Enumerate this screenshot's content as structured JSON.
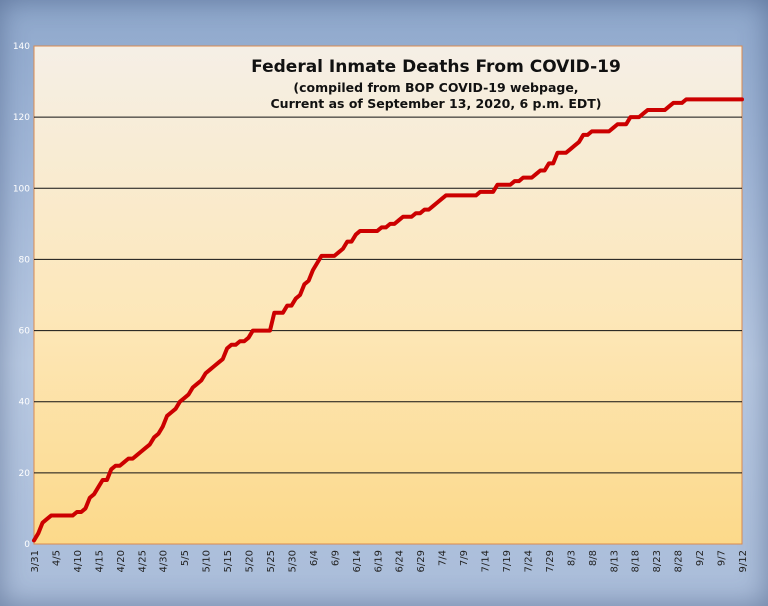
{
  "chart_data": {
    "type": "line",
    "title": "Federal Inmate Deaths From COVID-19",
    "subtitle": [
      "(compiled from BOP COVID-19 webpage,",
      "Current as of September 13, 2020, 6 p.m. EDT)"
    ],
    "xlabel": "",
    "ylabel": "",
    "ylim": [
      0,
      140
    ],
    "yticks": [
      0,
      20,
      40,
      60,
      80,
      100,
      120,
      140
    ],
    "xticks": [
      "3/31",
      "4/5",
      "4/10",
      "4/15",
      "4/20",
      "4/25",
      "4/30",
      "5/5",
      "5/10",
      "5/15",
      "5/20",
      "5/25",
      "5/30",
      "6/4",
      "6/9",
      "6/14",
      "6/19",
      "6/24",
      "6/29",
      "7/4",
      "7/9",
      "7/14",
      "7/19",
      "7/24",
      "7/29",
      "8/3",
      "8/8",
      "8/13",
      "8/18",
      "8/23",
      "8/28",
      "9/2",
      "9/7",
      "9/12"
    ],
    "grid": true,
    "line_color": "#cc0000",
    "series": [
      {
        "x": [
          0,
          1,
          2,
          3,
          4,
          5,
          6,
          7,
          8,
          9,
          10,
          11,
          12,
          13,
          14,
          15,
          16,
          17,
          18,
          19,
          20,
          21,
          22,
          23,
          24,
          25,
          26,
          27,
          28,
          29,
          30,
          31,
          32,
          33,
          34,
          35,
          36,
          37,
          38,
          39,
          40,
          41,
          42,
          43,
          44,
          45,
          46,
          47,
          48,
          49,
          50,
          51,
          52,
          53,
          54,
          55,
          56,
          57,
          58,
          59,
          60,
          61,
          62,
          63,
          64,
          65,
          66,
          67,
          68,
          69,
          70,
          71,
          72,
          73,
          74,
          75,
          76,
          77,
          78,
          79,
          80,
          81,
          82,
          83,
          84,
          85,
          86,
          87,
          88,
          89,
          90,
          91,
          92,
          93,
          94,
          95,
          96,
          97,
          98,
          99,
          100,
          101,
          102,
          103,
          104,
          105,
          106,
          107,
          108,
          109,
          110,
          111,
          112,
          113,
          114,
          115,
          116,
          117,
          118,
          119,
          120,
          121,
          122,
          123,
          124,
          125,
          126,
          127,
          128,
          129,
          130,
          131,
          132,
          133,
          134,
          135,
          136,
          137,
          138,
          139,
          140,
          141,
          142,
          143,
          144,
          145,
          146,
          147,
          148,
          149,
          150,
          151,
          152,
          153,
          154,
          155,
          156,
          157,
          158,
          159,
          160,
          161,
          162,
          163,
          164,
          165
        ],
        "values": [
          1,
          3,
          6,
          7,
          8,
          8,
          8,
          8,
          8,
          8,
          9,
          9,
          10,
          13,
          14,
          16,
          18,
          18,
          21,
          22,
          22,
          23,
          24,
          24,
          25,
          26,
          27,
          28,
          30,
          31,
          33,
          36,
          37,
          38,
          40,
          41,
          42,
          44,
          45,
          46,
          48,
          49,
          50,
          51,
          52,
          55,
          56,
          56,
          57,
          57,
          58,
          60,
          60,
          60,
          60,
          60,
          65,
          65,
          65,
          67,
          67,
          69,
          70,
          73,
          74,
          77,
          79,
          81,
          81,
          81,
          81,
          82,
          83,
          85,
          85,
          87,
          88,
          88,
          88,
          88,
          88,
          89,
          89,
          90,
          90,
          91,
          92,
          92,
          92,
          93,
          93,
          94,
          94,
          95,
          96,
          97,
          98,
          98,
          98,
          98,
          98,
          98,
          98,
          98,
          99,
          99,
          99,
          99,
          101,
          101,
          101,
          101,
          102,
          102,
          103,
          103,
          103,
          104,
          105,
          105,
          107,
          107,
          110,
          110,
          110,
          111,
          112,
          113,
          115,
          115,
          116,
          116,
          116,
          116,
          116,
          117,
          118,
          118,
          118,
          120,
          120,
          120,
          121,
          122,
          122,
          122,
          122,
          122,
          123,
          124,
          124,
          124,
          125,
          125,
          125,
          125,
          125,
          125,
          125,
          125,
          125,
          125,
          125,
          125,
          125,
          125
        ]
      }
    ]
  }
}
